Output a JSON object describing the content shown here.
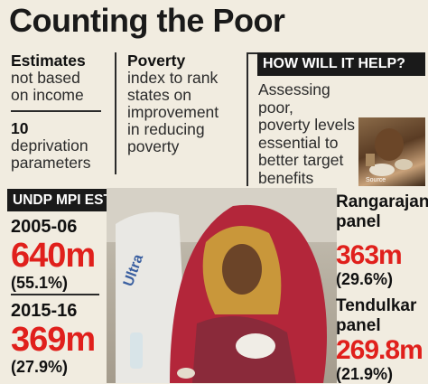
{
  "title": "Counting the Poor",
  "estimates": {
    "heading": "Estimates",
    "line1": "not based",
    "line2": "on income",
    "count": "10",
    "count_line1": "deprivation",
    "count_line2": "parameters"
  },
  "poverty": {
    "heading": "Poverty",
    "line1": "index to rank",
    "line2": "states on",
    "line3": "improvement",
    "line4": "in reducing",
    "line5": "poverty"
  },
  "help": {
    "heading": "HOW WILL IT HELP?",
    "line1": "Assessing poor,",
    "line2": "poverty levels",
    "line3": "essential to",
    "line4": "better target",
    "line5": "benefits"
  },
  "undp": {
    "heading": "UNDP MPI ESTIMATES",
    "entries": [
      {
        "year": "2005-06",
        "value": "640m",
        "pct": "(55.1%)"
      },
      {
        "year": "2015-16",
        "value": "369m",
        "pct": "(27.9%)"
      }
    ]
  },
  "panels": [
    {
      "line1": "Rangarajan",
      "line2": "panel",
      "value": "363m",
      "pct": "(29.6%)"
    },
    {
      "line1": "Tendulkar",
      "line2": "panel",
      "value": "269.8m",
      "pct": "(21.9%)"
    }
  ],
  "credit": "Source",
  "colors": {
    "accent_red": "#e0201c",
    "box_black": "#1a1a1a",
    "background": "#f1ece0"
  }
}
